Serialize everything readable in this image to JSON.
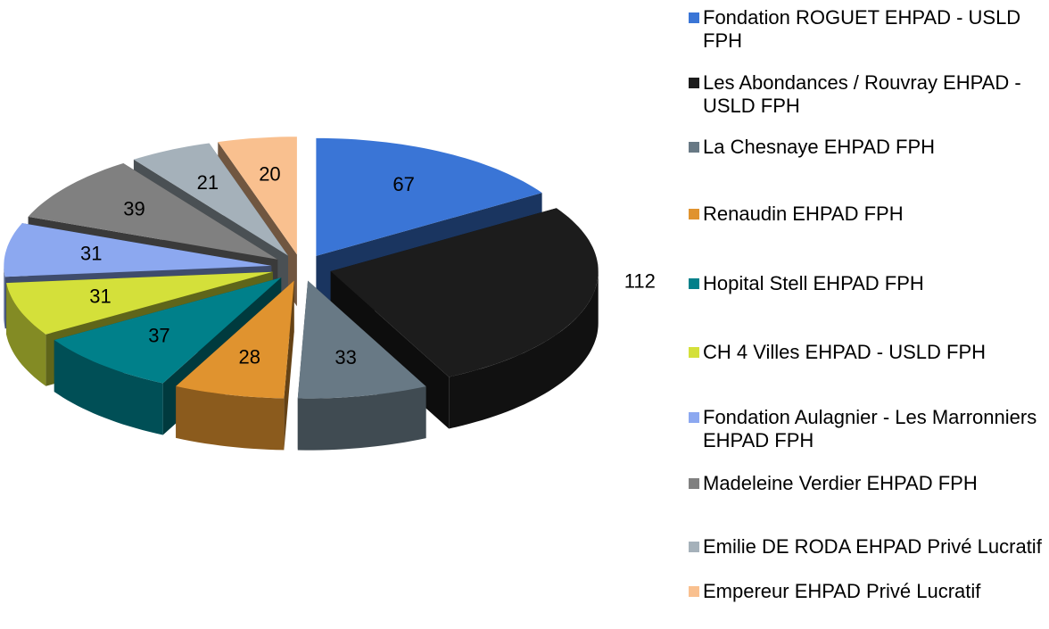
{
  "chart_data": {
    "type": "pie",
    "categories": [
      "Fondation ROGUET EHPAD - USLD FPH",
      "Les Abondances / Rouvray EHPAD - USLD FPH",
      "La Chesnaye EHPAD FPH",
      "Renaudin EHPAD FPH",
      "Hopital Stell EHPAD FPH",
      "CH 4 Villes EHPAD - USLD FPH",
      "Fondation Aulagnier - Les Marronniers EHPAD FPH",
      "Madeleine Verdier EHPAD FPH",
      "Emilie DE RODA EHPAD Privé Lucratif",
      "Empereur EHPAD Privé Lucratif"
    ],
    "values": [
      67,
      112,
      33,
      28,
      37,
      31,
      31,
      39,
      21,
      20
    ],
    "colors": [
      "#3a75d6",
      "#1c1c1c",
      "#687985",
      "#e0932f",
      "#00808a",
      "#d4e03a",
      "#8ca8f0",
      "#808080",
      "#a5b1ba",
      "#f9c08f"
    ],
    "legend": "right"
  }
}
